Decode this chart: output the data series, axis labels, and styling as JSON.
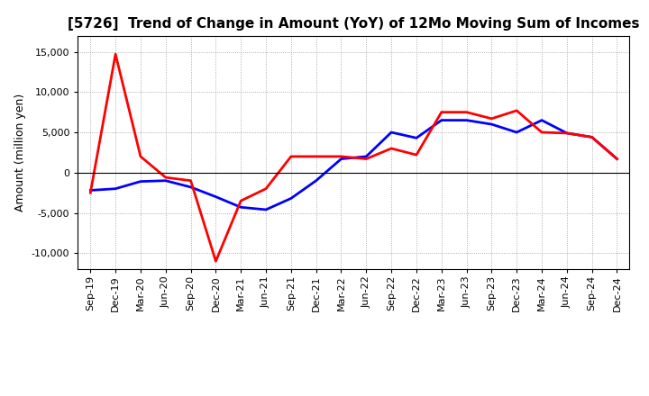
{
  "title": "[5726]  Trend of Change in Amount (YoY) of 12Mo Moving Sum of Incomes",
  "ylabel": "Amount (million yen)",
  "background_color": "#ffffff",
  "grid_color": "#999999",
  "x_labels": [
    "Sep-19",
    "Dec-19",
    "Mar-20",
    "Jun-20",
    "Sep-20",
    "Dec-20",
    "Mar-21",
    "Jun-21",
    "Sep-21",
    "Dec-21",
    "Mar-22",
    "Jun-22",
    "Sep-22",
    "Dec-22",
    "Mar-23",
    "Jun-23",
    "Sep-23",
    "Dec-23",
    "Mar-24",
    "Jun-24",
    "Sep-24",
    "Dec-24"
  ],
  "ordinary_income": [
    -2200,
    -2000,
    -1100,
    -1000,
    -1800,
    -3000,
    -4300,
    -4600,
    -3200,
    -1000,
    1700,
    2000,
    5000,
    4300,
    6500,
    6500,
    6000,
    5000,
    6500,
    4900,
    4400,
    1700
  ],
  "net_income": [
    -2500,
    14700,
    2000,
    -600,
    -1000,
    -11000,
    -3500,
    -2000,
    2000,
    2000,
    2000,
    1700,
    3000,
    2200,
    7500,
    7500,
    6700,
    7700,
    5000,
    4900,
    4400,
    1700
  ],
  "ordinary_color": "#0000ff",
  "net_color": "#ff0000",
  "ylim": [
    -12000,
    17000
  ],
  "yticks": [
    -10000,
    -5000,
    0,
    5000,
    10000,
    15000
  ],
  "line_width": 2.0,
  "title_fontsize": 11,
  "axis_label_fontsize": 9,
  "tick_fontsize": 8
}
